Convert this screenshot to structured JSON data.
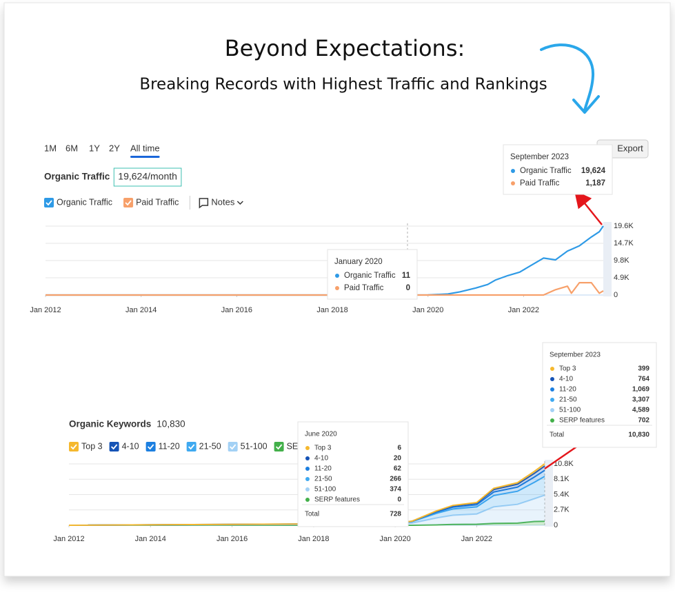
{
  "header": {
    "title": "Beyond Expectations:",
    "subtitle": "Breaking Records with Highest Traffic and Rankings"
  },
  "time_range": [
    "1M",
    "6M",
    "1Y",
    "2Y",
    "All time"
  ],
  "export": "Export",
  "chart_data": [
    {
      "type": "line",
      "title": "Organic Traffic",
      "summary": "19,624/month",
      "notes": "Notes",
      "x": [
        "2012-01",
        "2014-01",
        "2016-01",
        "2018-01",
        "2019-06",
        "2020-01",
        "2020-06",
        "2020-09",
        "2021-01",
        "2021-04",
        "2021-06",
        "2021-09",
        "2021-12",
        "2022-03",
        "2022-06",
        "2022-09",
        "2022-12",
        "2023-01",
        "2023-03",
        "2023-06",
        "2023-08",
        "2023-09"
      ],
      "series": [
        {
          "name": "Organic Traffic",
          "color": "#2e9ae6",
          "values": [
            0,
            0,
            0,
            0,
            5,
            11,
            300,
            900,
            2000,
            3000,
            4300,
            5500,
            6500,
            8500,
            10500,
            10000,
            12500,
            13000,
            14000,
            16500,
            18000,
            19624
          ]
        },
        {
          "name": "Paid Traffic",
          "color": "#f7a06a",
          "values": [
            0,
            0,
            0,
            0,
            0,
            0,
            0,
            0,
            0,
            0,
            0,
            0,
            0,
            0,
            0,
            1500,
            2500,
            500,
            3500,
            3500,
            500,
            1187
          ]
        }
      ],
      "xlim": [
        "2012-01",
        "2023-09"
      ],
      "xticks": [
        {
          "value": "2012-01",
          "label": "Jan 2012"
        },
        {
          "value": "2014-01",
          "label": "Jan 2014"
        },
        {
          "value": "2016-01",
          "label": "Jan 2016"
        },
        {
          "value": "2018-01",
          "label": "Jan 2018"
        },
        {
          "value": "2020-01",
          "label": "Jan 2020"
        },
        {
          "value": "2022-01",
          "label": "Jan 2022"
        }
      ],
      "ylim": [
        0,
        19600
      ],
      "yticks": [
        0,
        {
          "value": 4900,
          "label": "4.9K"
        },
        {
          "value": 9800,
          "label": "9.8K"
        },
        {
          "value": 14700,
          "label": "14.7K"
        },
        {
          "value": 19600,
          "label": "19.6K"
        }
      ],
      "grid": true,
      "tooltips": [
        {
          "date": "September 2023",
          "rows": [
            {
              "label": "Organic Traffic",
              "value": "19,624"
            },
            {
              "label": "Paid Traffic",
              "value": "1,187"
            }
          ]
        },
        {
          "date": "January 2020",
          "rows": [
            {
              "label": "Organic Traffic",
              "value": "11"
            },
            {
              "label": "Paid Traffic",
              "value": "0"
            }
          ]
        }
      ]
    },
    {
      "type": "stacked-area",
      "title": "Organic Keywords",
      "summary": "10,830",
      "x": [
        "2012-01",
        "2020-01",
        "2020-06",
        "2021-01",
        "2021-06",
        "2022-01",
        "2022-06",
        "2023-01",
        "2023-06",
        "2023-09"
      ],
      "series": [
        {
          "name": "Top 3",
          "color": "#f5b82e",
          "values": [
            0,
            2,
            6,
            60,
            100,
            130,
            220,
            270,
            340,
            399
          ]
        },
        {
          "name": "4-10",
          "color": "#1553b6",
          "values": [
            0,
            8,
            20,
            150,
            220,
            260,
            430,
            520,
            660,
            764
          ]
        },
        {
          "name": "11-20",
          "color": "#1c7fe0",
          "values": [
            0,
            25,
            62,
            230,
            320,
            380,
            620,
            730,
            930,
            1069
          ]
        },
        {
          "name": "21-50",
          "color": "#3fa9f0",
          "values": [
            0,
            110,
            266,
            800,
            1100,
            1250,
            2000,
            2300,
            2900,
            3307
          ]
        },
        {
          "name": "51-100",
          "color": "#a3d1f5",
          "values": [
            0,
            155,
            374,
            1200,
            1600,
            1800,
            2900,
            3300,
            4000,
            4589
          ]
        },
        {
          "name": "SERP features",
          "color": "#43b04a",
          "values": [
            0,
            0,
            0,
            60,
            160,
            180,
            330,
            380,
            670,
            702
          ]
        }
      ],
      "xlim": [
        "2012-01",
        "2023-09"
      ],
      "xticks": [
        {
          "value": "2012-01",
          "label": "Jan 2012"
        },
        {
          "value": "2014-01",
          "label": "Jan 2014"
        },
        {
          "value": "2016-01",
          "label": "Jan 2016"
        },
        {
          "value": "2018-01",
          "label": "Jan 2018"
        },
        {
          "value": "2020-01",
          "label": "Jan 2020"
        },
        {
          "value": "2022-01",
          "label": "Jan 2022"
        }
      ],
      "ylim": [
        0,
        10800
      ],
      "yticks": [
        0,
        {
          "value": 2700,
          "label": "2.7K"
        },
        {
          "value": 5400,
          "label": "5.4K"
        },
        {
          "value": 8100,
          "label": "8.1K"
        },
        {
          "value": 10800,
          "label": "10.8K"
        }
      ],
      "grid": true,
      "tooltips": [
        {
          "date": "September 2023",
          "rows": [
            {
              "label": "Top 3",
              "value": "399"
            },
            {
              "label": "4-10",
              "value": "764"
            },
            {
              "label": "11-20",
              "value": "1,069"
            },
            {
              "label": "21-50",
              "value": "3,307"
            },
            {
              "label": "51-100",
              "value": "4,589"
            },
            {
              "label": "SERP features",
              "value": "702"
            }
          ],
          "total_label": "Total",
          "total": "10,830"
        },
        {
          "date": "June 2020",
          "rows": [
            {
              "label": "Top 3",
              "value": "6"
            },
            {
              "label": "4-10",
              "value": "20"
            },
            {
              "label": "11-20",
              "value": "62"
            },
            {
              "label": "21-50",
              "value": "266"
            },
            {
              "label": "51-100",
              "value": "374"
            },
            {
              "label": "SERP features",
              "value": "0"
            }
          ],
          "total_label": "Total",
          "total": "728"
        }
      ]
    }
  ]
}
